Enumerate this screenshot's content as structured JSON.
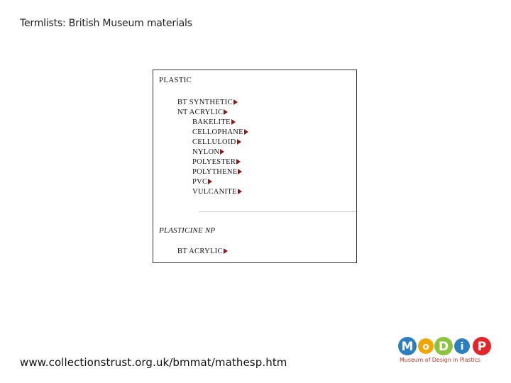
{
  "slide": {
    "title": "Termlists: British Museum materials",
    "url": "www.collectionstrust.org.uk/bmmat/mathesp.htm"
  },
  "thesaurus": {
    "plastic": {
      "heading": "PLASTIC",
      "broader": [
        "BT SYNTHETIC",
        "NT ACRYLIC"
      ],
      "narrower": [
        "BAKELITE",
        "CELLOPHANE",
        "CELLULOID",
        "NYLON",
        "POLYESTER",
        "POLYTHENE",
        "PVC",
        "VULCANITE"
      ]
    },
    "plasticine": {
      "heading": "PLASTICINE NP",
      "broader": [
        "BT ACRYLIC"
      ]
    }
  },
  "logo": {
    "letters": [
      "M",
      "o",
      "D",
      "i",
      "P"
    ],
    "tagline": "Museum of Design in Plastics",
    "colors": {
      "m": "#2b7fc1",
      "o": "#f0a500",
      "d": "#8cc43f",
      "i": "#2b7fc1",
      "p": "#e2262b",
      "tagline": "#c0392b"
    }
  },
  "colors": {
    "arrow": "#8b1a1a",
    "panel_border": "#333333"
  }
}
